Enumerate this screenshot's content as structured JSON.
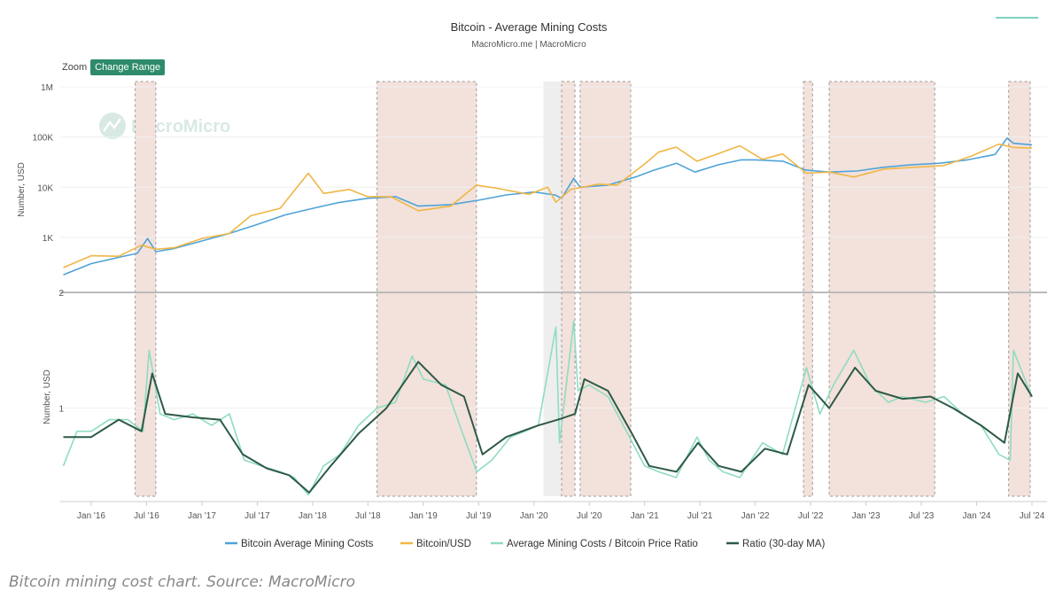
{
  "chart_data": {
    "title": "Bitcoin - Average Mining Costs",
    "subtitle": "MacroMicro.me | MacroMicro",
    "watermark": "MacroMicro",
    "zoom_label": "Zoom",
    "zoom_button": "Change Range",
    "type": "line",
    "x_ticks": [
      "Jan '16",
      "Jul '16",
      "Jan '17",
      "Jul '17",
      "Jan '18",
      "Jul '18",
      "Jan '19",
      "Jul '19",
      "Jan '20",
      "Jul '20",
      "Jan '21",
      "Jul '21",
      "Jan '22",
      "Jul '22",
      "Jan '23",
      "Jul '23",
      "Jan '24",
      "Jul '24"
    ],
    "upper_panel": {
      "ylabel": "Number, USD",
      "scale": "log",
      "y_ticks": [
        "1M",
        "100K",
        "10K",
        "1K"
      ],
      "y_tick_values": [
        1000000,
        100000,
        10000,
        1000
      ],
      "ylim": [
        80,
        1000000
      ]
    },
    "lower_panel": {
      "ylabel": "Number, USD",
      "y_ticks": [
        "2",
        "1"
      ],
      "y_tick_values": [
        2,
        1
      ],
      "ylim": [
        0.2,
        2
      ]
    },
    "shaded_ranges": [
      {
        "from": "2016-05-25",
        "to": "2016-08-01",
        "color": "#f3e1dc"
      },
      {
        "from": "2018-08-01",
        "to": "2019-06-25",
        "color": "#f3e1dc"
      },
      {
        "from": "2020-02-01",
        "to": "2020-04-01",
        "color": "#eeeeee"
      },
      {
        "from": "2020-04-01",
        "to": "2020-05-15",
        "color": "#f3e1dc"
      },
      {
        "from": "2020-06-01",
        "to": "2020-11-15",
        "color": "#f3e1dc"
      },
      {
        "from": "2022-06-08",
        "to": "2022-07-08",
        "color": "#f3e1dc"
      },
      {
        "from": "2022-09-01",
        "to": "2023-08-15",
        "color": "#f3e1dc"
      },
      {
        "from": "2024-04-15",
        "to": "2024-06-25",
        "color": "#f3e1dc"
      }
    ],
    "series": [
      {
        "name": "Bitcoin Average Mining Costs",
        "panel": "upper",
        "color": "#4fa3d8",
        "x": [
          "2015-10-01",
          "2016-01-01",
          "2016-04-01",
          "2016-06-01",
          "2016-07-05",
          "2016-08-01",
          "2016-10-01",
          "2017-01-01",
          "2017-04-01",
          "2017-07-01",
          "2017-10-01",
          "2018-01-01",
          "2018-04-01",
          "2018-07-01",
          "2018-10-01",
          "2018-12-15",
          "2019-04-01",
          "2019-07-01",
          "2019-10-01",
          "2020-01-01",
          "2020-03-10",
          "2020-04-01",
          "2020-05-11",
          "2020-06-01",
          "2020-09-01",
          "2020-12-01",
          "2021-02-01",
          "2021-04-15",
          "2021-06-15",
          "2021-09-01",
          "2021-11-15",
          "2022-01-01",
          "2022-04-01",
          "2022-06-15",
          "2022-09-01",
          "2022-12-01",
          "2023-03-01",
          "2023-06-01",
          "2023-09-01",
          "2023-12-01",
          "2024-03-01",
          "2024-04-10",
          "2024-05-01",
          "2024-07-01"
        ],
        "values": [
          180,
          300,
          400,
          480,
          950,
          520,
          600,
          850,
          1200,
          1800,
          2800,
          3800,
          5000,
          6000,
          6500,
          4200,
          4500,
          5500,
          7000,
          8000,
          7000,
          6000,
          15000,
          10000,
          11000,
          16000,
          22000,
          30000,
          20000,
          28000,
          35000,
          35000,
          33000,
          22000,
          20000,
          21000,
          25000,
          28000,
          30000,
          35000,
          45000,
          95000,
          75000,
          70000
        ]
      },
      {
        "name": "Bitcoin/USD",
        "panel": "upper",
        "color": "#f0b645",
        "x": [
          "2015-10-01",
          "2016-01-01",
          "2016-04-01",
          "2016-06-15",
          "2016-08-01",
          "2016-10-01",
          "2017-01-01",
          "2017-04-01",
          "2017-06-10",
          "2017-09-15",
          "2017-12-17",
          "2018-02-06",
          "2018-05-01",
          "2018-07-01",
          "2018-09-15",
          "2018-12-15",
          "2019-04-01",
          "2019-06-25",
          "2019-09-01",
          "2019-12-15",
          "2020-02-15",
          "2020-03-13",
          "2020-05-01",
          "2020-08-01",
          "2020-10-01",
          "2020-12-31",
          "2021-02-15",
          "2021-04-14",
          "2021-06-22",
          "2021-09-01",
          "2021-11-10",
          "2022-01-24",
          "2022-03-31",
          "2022-06-18",
          "2022-09-01",
          "2022-11-21",
          "2023-03-01",
          "2023-06-15",
          "2023-09-15",
          "2023-12-15",
          "2024-03-14",
          "2024-05-01",
          "2024-07-01"
        ],
        "values": [
          250,
          430,
          420,
          700,
          580,
          620,
          950,
          1200,
          2700,
          3800,
          19000,
          7500,
          9000,
          6500,
          6500,
          3400,
          4200,
          11000,
          9500,
          7200,
          10000,
          5000,
          9000,
          11500,
          11000,
          29000,
          50000,
          63000,
          33000,
          47000,
          67000,
          36000,
          46000,
          19000,
          20000,
          16000,
          23000,
          25000,
          27000,
          42000,
          72000,
          62000,
          60000
        ]
      },
      {
        "name": "Average Mining Costs / Bitcoin Price Ratio",
        "panel": "lower",
        "color": "#8fdcc1",
        "x": [
          "2015-10-01",
          "2015-11-15",
          "2016-01-01",
          "2016-03-01",
          "2016-05-01",
          "2016-06-20",
          "2016-07-10",
          "2016-08-15",
          "2016-10-01",
          "2016-12-01",
          "2017-02-01",
          "2017-04-01",
          "2017-05-20",
          "2017-07-15",
          "2017-09-15",
          "2017-11-01",
          "2017-12-17",
          "2018-02-06",
          "2018-04-01",
          "2018-06-01",
          "2018-08-01",
          "2018-10-01",
          "2018-11-25",
          "2019-01-01",
          "2019-03-15",
          "2019-05-01",
          "2019-06-26",
          "2019-08-15",
          "2019-10-15",
          "2019-12-01",
          "2020-01-15",
          "2020-03-13",
          "2020-03-25",
          "2020-05-11",
          "2020-05-25",
          "2020-07-01",
          "2020-09-01",
          "2020-11-01",
          "2020-12-31",
          "2021-02-15",
          "2021-04-14",
          "2021-06-22",
          "2021-08-01",
          "2021-09-15",
          "2021-11-10",
          "2022-01-24",
          "2022-03-31",
          "2022-06-18",
          "2022-08-01",
          "2022-09-15",
          "2022-11-21",
          "2023-01-15",
          "2023-03-15",
          "2023-05-01",
          "2023-07-15",
          "2023-09-15",
          "2023-11-15",
          "2024-01-15",
          "2024-03-14",
          "2024-04-20",
          "2024-05-01",
          "2024-06-15",
          "2024-07-01"
        ],
        "values": [
          0.5,
          0.8,
          0.8,
          0.9,
          0.9,
          0.8,
          1.5,
          0.95,
          0.9,
          0.95,
          0.85,
          0.95,
          0.55,
          0.5,
          0.45,
          0.4,
          0.25,
          0.5,
          0.6,
          0.85,
          1.0,
          1.05,
          1.45,
          1.25,
          1.2,
          0.85,
          0.45,
          0.55,
          0.75,
          0.8,
          0.85,
          1.7,
          0.7,
          1.75,
          1.15,
          1.2,
          1.1,
          0.8,
          0.5,
          0.45,
          0.4,
          0.75,
          0.55,
          0.45,
          0.4,
          0.7,
          0.6,
          1.35,
          0.95,
          1.2,
          1.5,
          1.2,
          1.05,
          1.1,
          1.05,
          1.1,
          0.95,
          0.85,
          0.6,
          0.55,
          1.5,
          1.2,
          1.1
        ]
      },
      {
        "name": "Ratio (30-day MA)",
        "panel": "lower",
        "color": "#2d5a45",
        "x": [
          "2015-10-01",
          "2016-01-01",
          "2016-04-01",
          "2016-06-15",
          "2016-07-20",
          "2016-09-01",
          "2016-12-01",
          "2017-03-01",
          "2017-05-15",
          "2017-08-01",
          "2017-10-15",
          "2017-12-20",
          "2018-03-01",
          "2018-06-01",
          "2018-09-01",
          "2018-12-15",
          "2019-03-01",
          "2019-05-15",
          "2019-07-15",
          "2019-10-01",
          "2020-01-15",
          "2020-03-20",
          "2020-05-15",
          "2020-06-15",
          "2020-09-01",
          "2020-11-15",
          "2021-01-15",
          "2021-04-15",
          "2021-06-25",
          "2021-09-01",
          "2021-11-15",
          "2022-02-01",
          "2022-04-15",
          "2022-06-25",
          "2022-09-01",
          "2022-11-25",
          "2023-02-01",
          "2023-05-01",
          "2023-08-01",
          "2023-10-15",
          "2024-01-15",
          "2024-04-01",
          "2024-05-15",
          "2024-07-01"
        ],
        "values": [
          0.75,
          0.75,
          0.9,
          0.8,
          1.3,
          0.95,
          0.92,
          0.9,
          0.6,
          0.48,
          0.42,
          0.27,
          0.5,
          0.78,
          1.0,
          1.4,
          1.2,
          1.1,
          0.6,
          0.75,
          0.85,
          0.9,
          0.95,
          1.25,
          1.15,
          0.8,
          0.5,
          0.45,
          0.7,
          0.5,
          0.45,
          0.65,
          0.6,
          1.2,
          1.0,
          1.35,
          1.15,
          1.08,
          1.1,
          1.0,
          0.85,
          0.7,
          1.3,
          1.1
        ]
      }
    ]
  },
  "caption": "Bitcoin mining cost chart. Source: MacroMicro"
}
